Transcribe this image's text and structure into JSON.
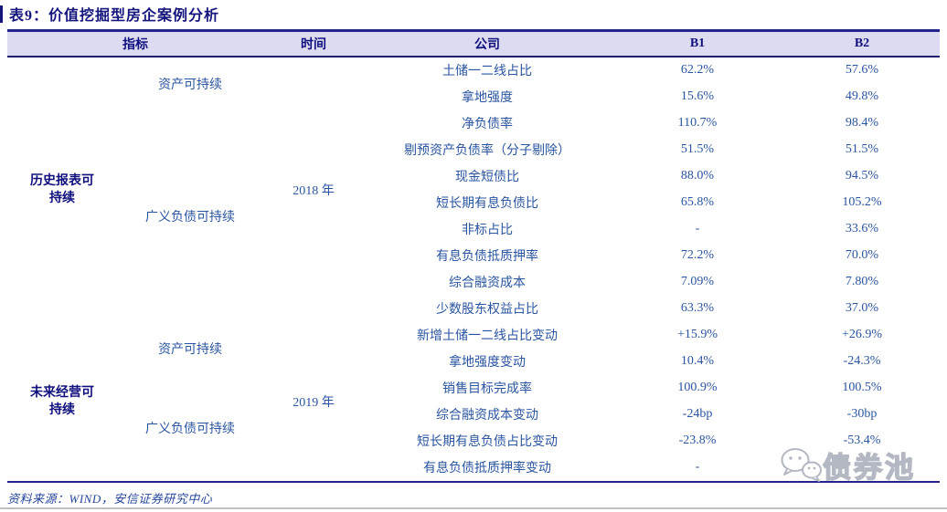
{
  "title": "表9：价值挖掘型房企案例分析",
  "colors": {
    "navy": "#10107e",
    "body_blue": "#2a55a0",
    "header_background": "#dcdbf1",
    "table_border": "#23238c",
    "bottom_rule_gray": "#bfbfbf",
    "watermark_gray": "#b4b8c2"
  },
  "table": {
    "headers": {
      "indicator": "指标",
      "time": "时间",
      "company": "公司",
      "b1": "B1",
      "b2": "B2"
    },
    "sections": [
      {
        "section": "历史报表可持续",
        "time": "2018 年",
        "groups": [
          {
            "label": "资产可持续",
            "rows": [
              {
                "metric": "土储一二线占比",
                "b1": "62.2%",
                "b2": "57.6%"
              },
              {
                "metric": "拿地强度",
                "b1": "15.6%",
                "b2": "49.8%"
              }
            ]
          },
          {
            "label": "广义负债可持续",
            "rows": [
              {
                "metric": "净负债率",
                "b1": "110.7%",
                "b2": "98.4%"
              },
              {
                "metric": "剔预资产负债率（分子剔除）",
                "b1": "51.5%",
                "b2": "51.5%"
              },
              {
                "metric": "现金短债比",
                "b1": "88.0%",
                "b2": "94.5%"
              },
              {
                "metric": "短长期有息负债比",
                "b1": "65.8%",
                "b2": "105.2%"
              },
              {
                "metric": "非标占比",
                "b1": "-",
                "b2": "33.6%"
              },
              {
                "metric": "有息负债抵质押率",
                "b1": "72.2%",
                "b2": "70.0%"
              },
              {
                "metric": "综合融资成本",
                "b1": "7.09%",
                "b2": "7.80%"
              },
              {
                "metric": "少数股东权益占比",
                "b1": "63.3%",
                "b2": "37.0%"
              }
            ]
          }
        ]
      },
      {
        "section": "未来经营可持续",
        "time": "2019 年",
        "groups": [
          {
            "label": "资产可持续",
            "rows": [
              {
                "metric": "新增土储一二线占比变动",
                "b1": "+15.9%",
                "b2": "+26.9%"
              },
              {
                "metric": "拿地强度变动",
                "b1": "10.4%",
                "b2": "-24.3%"
              }
            ]
          },
          {
            "label": "广义负债可持续",
            "rows": [
              {
                "metric": "销售目标完成率",
                "b1": "100.9%",
                "b2": "100.5%"
              },
              {
                "metric": "综合融资成本变动",
                "b1": "-24bp",
                "b2": "-30bp"
              },
              {
                "metric": "短长期有息负债占比变动",
                "b1": "-23.8%",
                "b2": "-53.4%"
              },
              {
                "metric": "有息负债抵质押率变动",
                "b1": "-",
                "b2": ""
              }
            ]
          }
        ]
      }
    ]
  },
  "watermark": {
    "text": "债券池"
  },
  "footer": {
    "source": "资料来源：WIND，安信证券研究中心"
  }
}
